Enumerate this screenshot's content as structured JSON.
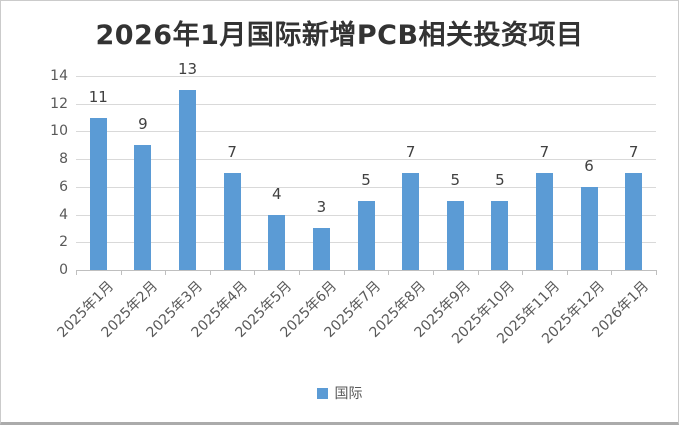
{
  "title": "2026年1月国际新增PCB相关投资项目",
  "legend": {
    "label": "国际",
    "marker_color": "#5b9bd5"
  },
  "chart_data": {
    "type": "bar",
    "title": "2026年1月国际新增PCB相关投资项目",
    "categories": [
      "2025年1月",
      "2025年2月",
      "2025年3月",
      "2025年4月",
      "2025年5月",
      "2025年6月",
      "2025年7月",
      "2025年8月",
      "2025年9月",
      "2025年10月",
      "2025年11月",
      "2025年12月",
      "2026年1月"
    ],
    "series": [
      {
        "name": "国际",
        "values": [
          11,
          9,
          13,
          7,
          4,
          3,
          5,
          7,
          5,
          5,
          7,
          6,
          7
        ]
      }
    ],
    "xlabel": "",
    "ylabel": "",
    "ylim": [
      0,
      14
    ],
    "ytick_step": 2,
    "grid": true,
    "data_labels": true,
    "legend_position": "bottom",
    "bar_color": "#5b9bd5",
    "gridline_color": "#d9d9d9",
    "axis_line_color": "#bfbfbf",
    "axis_text_color": "#595959",
    "data_label_color": "#404040",
    "title_color": "#333333"
  }
}
